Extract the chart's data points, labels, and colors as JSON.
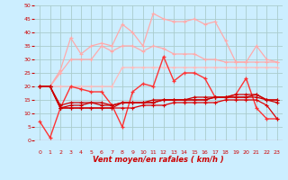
{
  "x": [
    0,
    1,
    2,
    3,
    4,
    5,
    6,
    7,
    8,
    9,
    10,
    11,
    12,
    13,
    14,
    15,
    16,
    17,
    18,
    19,
    20,
    21,
    22,
    23
  ],
  "series": [
    {
      "name": "rafales_max",
      "color": "#ffaaaa",
      "lw": 0.9,
      "marker": "+",
      "ms": 3,
      "mew": 0.8,
      "y": [
        20,
        20,
        26,
        38,
        32,
        35,
        36,
        35,
        43,
        40,
        35,
        47,
        45,
        44,
        44,
        45,
        43,
        44,
        37,
        29,
        29,
        35,
        30,
        29
      ]
    },
    {
      "name": "rafales_moy",
      "color": "#ffaaaa",
      "lw": 0.9,
      "marker": "+",
      "ms": 3,
      "mew": 0.8,
      "y": [
        20,
        20,
        25,
        30,
        30,
        30,
        35,
        33,
        35,
        35,
        33,
        35,
        34,
        32,
        32,
        32,
        30,
        30,
        29,
        29,
        29,
        29,
        29,
        29
      ]
    },
    {
      "name": "rafales_baseline",
      "color": "#ffbbbb",
      "lw": 0.9,
      "marker": "+",
      "ms": 3,
      "mew": 0.8,
      "y": [
        20,
        20,
        20,
        20,
        20,
        20,
        20,
        20,
        27,
        27,
        27,
        27,
        27,
        27,
        27,
        27,
        27,
        27,
        27,
        27,
        27,
        27,
        27,
        27
      ]
    },
    {
      "name": "vent_max",
      "color": "#ff3333",
      "lw": 1.0,
      "marker": "+",
      "ms": 3,
      "mew": 0.9,
      "y": [
        7,
        1,
        12,
        20,
        19,
        18,
        18,
        13,
        5,
        18,
        21,
        20,
        31,
        22,
        25,
        25,
        23,
        16,
        16,
        17,
        23,
        12,
        8,
        8
      ]
    },
    {
      "name": "vent_moy_dec",
      "color": "#dd0000",
      "lw": 0.9,
      "marker": "+",
      "ms": 2.5,
      "mew": 0.8,
      "y": [
        20,
        20,
        12,
        12,
        12,
        12,
        12,
        12,
        12,
        12,
        13,
        13,
        13,
        14,
        14,
        14,
        14,
        14,
        15,
        15,
        15,
        15,
        13,
        8
      ]
    },
    {
      "name": "vent_moy1",
      "color": "#cc0000",
      "lw": 0.9,
      "marker": "+",
      "ms": 2.5,
      "mew": 0.8,
      "y": [
        20,
        20,
        12,
        13,
        13,
        14,
        13,
        13,
        14,
        14,
        14,
        14,
        15,
        15,
        15,
        15,
        15,
        16,
        16,
        16,
        16,
        16,
        15,
        14
      ]
    },
    {
      "name": "vent_moy2",
      "color": "#cc0000",
      "lw": 0.9,
      "marker": "+",
      "ms": 2.5,
      "mew": 0.8,
      "y": [
        20,
        20,
        13,
        14,
        14,
        14,
        14,
        13,
        14,
        14,
        14,
        15,
        15,
        15,
        15,
        15,
        15,
        16,
        16,
        16,
        16,
        17,
        15,
        15
      ]
    },
    {
      "name": "vent_min",
      "color": "#cc0000",
      "lw": 0.9,
      "marker": "+",
      "ms": 2.5,
      "mew": 0.8,
      "y": [
        20,
        20,
        12,
        12,
        12,
        12,
        12,
        12,
        14,
        14,
        14,
        14,
        15,
        15,
        15,
        16,
        16,
        16,
        16,
        17,
        17,
        17,
        15,
        15
      ]
    }
  ],
  "xlabel": "Vent moyen/en rafales ( km/h )",
  "xlim": [
    -0.5,
    23.5
  ],
  "ylim": [
    0,
    50
  ],
  "yticks": [
    0,
    5,
    10,
    15,
    20,
    25,
    30,
    35,
    40,
    45,
    50
  ],
  "xticks": [
    0,
    1,
    2,
    3,
    4,
    5,
    6,
    7,
    8,
    9,
    10,
    11,
    12,
    13,
    14,
    15,
    16,
    17,
    18,
    19,
    20,
    21,
    22,
    23
  ],
  "bg_color": "#cceeff",
  "grid_color": "#aacccc",
  "xlabel_color": "#cc0000",
  "tick_color": "#cc0000",
  "arrow_color": "#cc0000"
}
